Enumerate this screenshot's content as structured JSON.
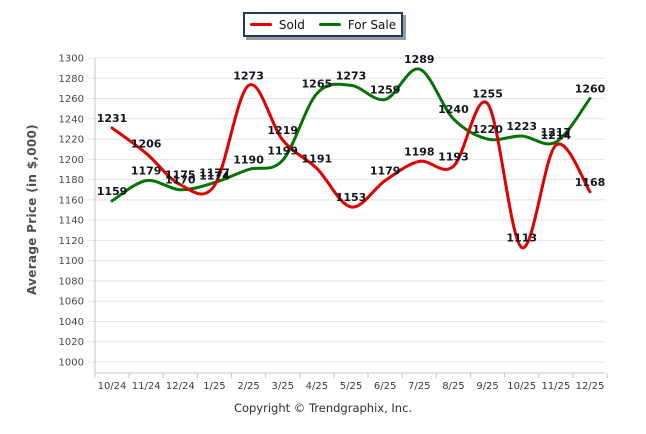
{
  "legend": {
    "items": [
      {
        "label": "Sold",
        "color": "#e00000"
      },
      {
        "label": "For Sale",
        "color": "#067306"
      }
    ]
  },
  "chart_data": {
    "type": "line",
    "title": "",
    "categories": [
      "10/24",
      "11/24",
      "12/24",
      "1/25",
      "2/25",
      "3/25",
      "4/25",
      "5/25",
      "6/25",
      "7/25",
      "8/25",
      "9/25",
      "10/25",
      "11/25",
      "12/25"
    ],
    "series": [
      {
        "name": "Sold",
        "color": "#e00000",
        "values": [
          1231,
          1206,
          1175,
          1174,
          1273,
          1219,
          1191,
          1153,
          1179,
          1198,
          1193,
          1255,
          1113,
          1214,
          1168
        ]
      },
      {
        "name": "For Sale",
        "color": "#067306",
        "values": [
          1159,
          1179,
          1170,
          1177,
          1190,
          1199,
          1265,
          1273,
          1259,
          1289,
          1240,
          1220,
          1223,
          1217,
          1260
        ]
      }
    ],
    "xlabel": "",
    "ylabel": "Average Price (in $,000)",
    "ylim": [
      1000,
      1300
    ],
    "ytick_step": 20,
    "grid": true,
    "smooth": true,
    "data_labels": true,
    "legend_position": "top-center"
  },
  "footer": {
    "copyright": "Copyright © Trendgraphix, Inc."
  },
  "colors": {
    "grid": "#e4e4e4",
    "axis": "#c6c6c6",
    "tick_text": "#4a4a4a",
    "xtick_text": "#3a3a3a",
    "data_label": "#12161c"
  }
}
